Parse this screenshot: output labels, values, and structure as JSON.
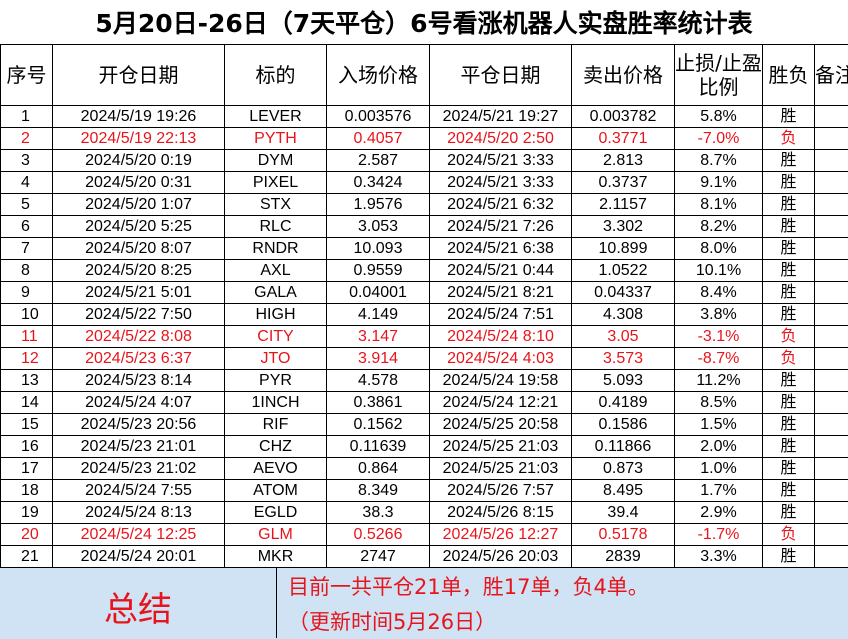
{
  "title": "5月20日-26日（7天平仓）6号看涨机器人实盘胜率统计表",
  "headers": {
    "idx": "序号",
    "open_date": "开仓日期",
    "symbol": "标的",
    "entry_price": "入场价格",
    "close_date": "平仓日期",
    "exit_price": "卖出价格",
    "ratio": "止损/止盈比例",
    "result": "胜负",
    "note": "备注"
  },
  "rows": [
    {
      "idx": "1",
      "open_date": "2024/5/19 19:26",
      "symbol": "LEVER",
      "entry_price": "0.003576",
      "close_date": "2024/5/21 19:27",
      "exit_price": "0.003782",
      "ratio": "5.8%",
      "result": "胜",
      "note": "",
      "loss": false
    },
    {
      "idx": "2",
      "open_date": "2024/5/19 22:13",
      "symbol": "PYTH",
      "entry_price": "0.4057",
      "close_date": "2024/5/20 2:50",
      "exit_price": "0.3771",
      "ratio": "-7.0%",
      "result": "负",
      "note": "",
      "loss": true
    },
    {
      "idx": "3",
      "open_date": "2024/5/20 0:19",
      "symbol": "DYM",
      "entry_price": "2.587",
      "close_date": "2024/5/21 3:33",
      "exit_price": "2.813",
      "ratio": "8.7%",
      "result": "胜",
      "note": "",
      "loss": false
    },
    {
      "idx": "4",
      "open_date": "2024/5/20 0:31",
      "symbol": "PIXEL",
      "entry_price": "0.3424",
      "close_date": "2024/5/21 3:33",
      "exit_price": "0.3737",
      "ratio": "9.1%",
      "result": "胜",
      "note": "",
      "loss": false
    },
    {
      "idx": "5",
      "open_date": "2024/5/20 1:07",
      "symbol": "STX",
      "entry_price": "1.9576",
      "close_date": "2024/5/21 6:32",
      "exit_price": "2.1157",
      "ratio": "8.1%",
      "result": "胜",
      "note": "",
      "loss": false
    },
    {
      "idx": "6",
      "open_date": "2024/5/20 5:25",
      "symbol": "RLC",
      "entry_price": "3.053",
      "close_date": "2024/5/21 7:26",
      "exit_price": "3.302",
      "ratio": "8.2%",
      "result": "胜",
      "note": "",
      "loss": false
    },
    {
      "idx": "7",
      "open_date": "2024/5/20 8:07",
      "symbol": "RNDR",
      "entry_price": "10.093",
      "close_date": "2024/5/21 6:38",
      "exit_price": "10.899",
      "ratio": "8.0%",
      "result": "胜",
      "note": "",
      "loss": false
    },
    {
      "idx": "8",
      "open_date": "2024/5/20 8:25",
      "symbol": "AXL",
      "entry_price": "0.9559",
      "close_date": "2024/5/21 0:44",
      "exit_price": "1.0522",
      "ratio": "10.1%",
      "result": "胜",
      "note": "",
      "loss": false
    },
    {
      "idx": "9",
      "open_date": "2024/5/21 5:01",
      "symbol": "GALA",
      "entry_price": "0.04001",
      "close_date": "2024/5/21 8:21",
      "exit_price": "0.04337",
      "ratio": "8.4%",
      "result": "胜",
      "note": "",
      "loss": false
    },
    {
      "idx": "10",
      "open_date": "2024/5/22 7:50",
      "symbol": "HIGH",
      "entry_price": "4.149",
      "close_date": "2024/5/24 7:51",
      "exit_price": "4.308",
      "ratio": "3.8%",
      "result": "胜",
      "note": "",
      "loss": false
    },
    {
      "idx": "11",
      "open_date": "2024/5/22 8:08",
      "symbol": "CITY",
      "entry_price": "3.147",
      "close_date": "2024/5/24 8:10",
      "exit_price": "3.05",
      "ratio": "-3.1%",
      "result": "负",
      "note": "",
      "loss": true
    },
    {
      "idx": "12",
      "open_date": "2024/5/23 6:37",
      "symbol": "JTO",
      "entry_price": "3.914",
      "close_date": "2024/5/24 4:03",
      "exit_price": "3.573",
      "ratio": "-8.7%",
      "result": "负",
      "note": "",
      "loss": true
    },
    {
      "idx": "13",
      "open_date": "2024/5/23 8:14",
      "symbol": "PYR",
      "entry_price": "4.578",
      "close_date": "2024/5/24 19:58",
      "exit_price": "5.093",
      "ratio": "11.2%",
      "result": "胜",
      "note": "",
      "loss": false
    },
    {
      "idx": "14",
      "open_date": "2024/5/24 4:07",
      "symbol": "1INCH",
      "entry_price": "0.3861",
      "close_date": "2024/5/24 12:21",
      "exit_price": "0.4189",
      "ratio": "8.5%",
      "result": "胜",
      "note": "",
      "loss": false
    },
    {
      "idx": "15",
      "open_date": "2024/5/23 20:56",
      "symbol": "RIF",
      "entry_price": "0.1562",
      "close_date": "2024/5/25 20:58",
      "exit_price": "0.1586",
      "ratio": "1.5%",
      "result": "胜",
      "note": "",
      "loss": false
    },
    {
      "idx": "16",
      "open_date": "2024/5/23 21:01",
      "symbol": "CHZ",
      "entry_price": "0.11639",
      "close_date": "2024/5/25 21:03",
      "exit_price": "0.11866",
      "ratio": "2.0%",
      "result": "胜",
      "note": "",
      "loss": false
    },
    {
      "idx": "17",
      "open_date": "2024/5/23 21:02",
      "symbol": "AEVO",
      "entry_price": "0.864",
      "close_date": "2024/5/25 21:03",
      "exit_price": "0.873",
      "ratio": "1.0%",
      "result": "胜",
      "note": "",
      "loss": false
    },
    {
      "idx": "18",
      "open_date": "2024/5/24 7:55",
      "symbol": "ATOM",
      "entry_price": "8.349",
      "close_date": "2024/5/26 7:57",
      "exit_price": "8.495",
      "ratio": "1.7%",
      "result": "胜",
      "note": "",
      "loss": false
    },
    {
      "idx": "19",
      "open_date": "2024/5/24 8:13",
      "symbol": "EGLD",
      "entry_price": "38.3",
      "close_date": "2024/5/26 8:15",
      "exit_price": "39.4",
      "ratio": "2.9%",
      "result": "胜",
      "note": "",
      "loss": false
    },
    {
      "idx": "20",
      "open_date": "2024/5/24 12:25",
      "symbol": "GLM",
      "entry_price": "0.5266",
      "close_date": "2024/5/26 12:27",
      "exit_price": "0.5178",
      "ratio": "-1.7%",
      "result": "负",
      "note": "",
      "loss": true
    },
    {
      "idx": "21",
      "open_date": "2024/5/24 20:01",
      "symbol": "MKR",
      "entry_price": "2747",
      "close_date": "2024/5/26 20:03",
      "exit_price": "2839",
      "ratio": "3.3%",
      "result": "胜",
      "note": "",
      "loss": false
    }
  ],
  "summary": {
    "label": "总结",
    "line1": "目前一共平仓21单，胜17单，负4单。",
    "line2": "（更新时间5月26日）"
  },
  "colors": {
    "loss_text": "#e8141c",
    "summary_bg": "#cfe3f4"
  }
}
